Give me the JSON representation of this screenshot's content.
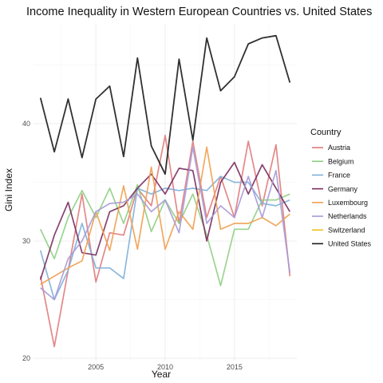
{
  "chart_data": {
    "type": "line",
    "title": "Income Inequality in Western European Countries vs. United States",
    "xlabel": "Year",
    "ylabel": "Gini Index",
    "xlim": [
      2000.5,
      2019.5
    ],
    "ylim": [
      19.8,
      48.5
    ],
    "x_ticks": [
      2005,
      2010,
      2015
    ],
    "y_ticks": [
      20,
      30,
      40
    ],
    "grid": true,
    "legend_title": "Country",
    "legend_position": "right",
    "x": [
      2001,
      2002,
      2003,
      2004,
      2005,
      2006,
      2007,
      2008,
      2009,
      2010,
      2011,
      2012,
      2013,
      2014,
      2015,
      2016,
      2017,
      2018,
      2019
    ],
    "series": [
      {
        "name": "Austria",
        "color": "#e07b7b",
        "values": [
          27.0,
          21.0,
          27.5,
          34.0,
          26.5,
          30.7,
          30.5,
          34.5,
          33.0,
          39.0,
          31.5,
          38.5,
          32.0,
          35.5,
          32.0,
          38.5,
          33.0,
          38.2,
          27.0
        ]
      },
      {
        "name": "Belgium",
        "color": "#8fcf84",
        "values": [
          31.0,
          28.5,
          32.0,
          34.3,
          32.0,
          34.5,
          31.5,
          34.8,
          30.8,
          33.5,
          31.5,
          34.0,
          30.5,
          26.2,
          31.0,
          31.0,
          33.5,
          33.5,
          34.0
        ]
      },
      {
        "name": "France",
        "color": "#7fb0d8",
        "values": [
          29.2,
          25.0,
          27.5,
          31.5,
          27.7,
          27.7,
          26.8,
          34.5,
          34.0,
          34.5,
          34.3,
          34.5,
          34.3,
          35.5,
          35.0,
          35.0,
          33.2,
          33.0,
          33.5
        ]
      },
      {
        "name": "Germany",
        "color": "#7a2c5e",
        "values": [
          26.7,
          30.5,
          33.3,
          29.0,
          28.8,
          32.5,
          33.0,
          34.5,
          35.7,
          34.0,
          36.2,
          36.0,
          30.0,
          35.0,
          36.7,
          34.0,
          36.5,
          34.5,
          32.5
        ]
      },
      {
        "name": "Luxembourg",
        "color": "#f0a050",
        "values": [
          26.3,
          27.0,
          27.7,
          28.3,
          32.5,
          29.2,
          34.7,
          29.3,
          36.3,
          29.3,
          32.5,
          31.0,
          38.0,
          31.0,
          31.5,
          31.5,
          32.0,
          31.3,
          32.3
        ]
      },
      {
        "name": "Netherlands",
        "color": "#a79ad8",
        "values": [
          26.0,
          25.0,
          28.5,
          30.0,
          32.5,
          33.2,
          33.3,
          34.0,
          32.5,
          33.5,
          30.7,
          38.0,
          31.5,
          33.0,
          32.0,
          35.5,
          32.0,
          36.0,
          27.3
        ]
      },
      {
        "name": "Switzerland",
        "color": "#f0c020",
        "values": [
          null,
          null,
          null,
          null,
          null,
          null,
          null,
          null,
          null,
          null,
          null,
          null,
          null,
          null,
          null,
          null,
          null,
          null,
          null
        ]
      },
      {
        "name": "United States",
        "color": "#1a1a1a",
        "values": [
          42.2,
          37.6,
          42.1,
          37.1,
          42.1,
          43.2,
          37.2,
          45.6,
          38.1,
          35.7,
          45.5,
          38.6,
          47.3,
          42.8,
          44.0,
          46.8,
          47.3,
          47.5,
          43.5
        ]
      }
    ]
  }
}
